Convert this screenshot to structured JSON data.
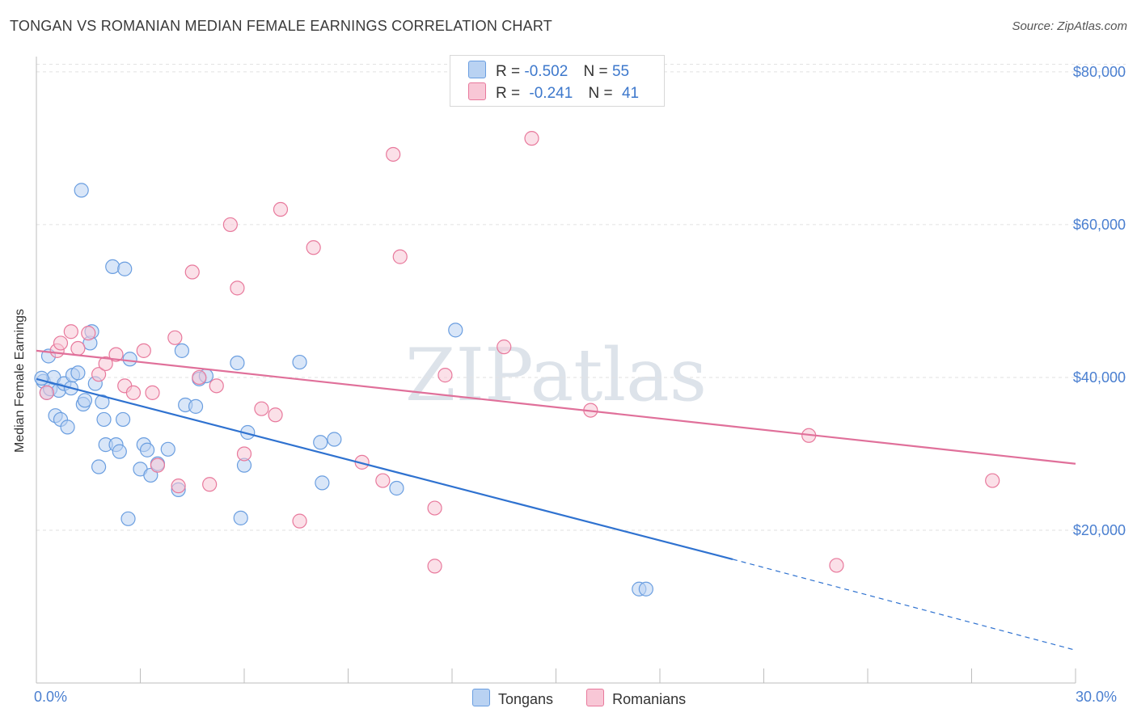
{
  "title": "TONGAN VS ROMANIAN MEDIAN FEMALE EARNINGS CORRELATION CHART",
  "source": "Source: ZipAtlas.com",
  "watermark": "ZIPatlas",
  "legend_stats": [
    {
      "r_label": "R =",
      "r_value": "-0.502",
      "n_label": "N =",
      "n_value": "55"
    },
    {
      "r_label": "R =",
      "r_value": "-0.241",
      "n_label": "N =",
      "n_value": "41"
    }
  ],
  "legend_series": [
    "Tongans",
    "Romanians"
  ],
  "x_tick_labels": {
    "min": "0.0%",
    "max": "30.0%"
  },
  "chart_data": {
    "type": "scatter",
    "ylabel": "Median Female Earnings",
    "xlabel": "",
    "xlim": [
      0,
      30
    ],
    "ylim": [
      0,
      82000
    ],
    "y_ticks": [
      20000,
      40000,
      60000,
      80000
    ],
    "y_tick_labels": [
      "$20,000",
      "$40,000",
      "$60,000",
      "$80,000"
    ],
    "grid": true,
    "legend_position": "top-center",
    "series": [
      {
        "name": "Tongans",
        "color": "#6a9ee0",
        "fill": "#b9d2f2",
        "points": [
          [
            0.2,
            39.5
          ],
          [
            0.3,
            38
          ],
          [
            0.35,
            42.8
          ],
          [
            0.4,
            38.5
          ],
          [
            0.5,
            40
          ],
          [
            0.55,
            35
          ],
          [
            0.65,
            38.3
          ],
          [
            0.7,
            34.5
          ],
          [
            0.8,
            39.2
          ],
          [
            0.9,
            33.5
          ],
          [
            1.0,
            38.6
          ],
          [
            1.05,
            40.3
          ],
          [
            1.2,
            40.6
          ],
          [
            1.35,
            36.5
          ],
          [
            1.4,
            37
          ],
          [
            1.55,
            44.5
          ],
          [
            1.6,
            46
          ],
          [
            1.7,
            39.2
          ],
          [
            1.8,
            28.3
          ],
          [
            1.9,
            36.8
          ],
          [
            1.95,
            34.5
          ],
          [
            2.0,
            31.2
          ],
          [
            2.2,
            54.5
          ],
          [
            2.3,
            31.2
          ],
          [
            2.4,
            30.3
          ],
          [
            2.5,
            34.5
          ],
          [
            2.55,
            54.2
          ],
          [
            2.65,
            21.5
          ],
          [
            2.7,
            42.4
          ],
          [
            3.0,
            28
          ],
          [
            3.1,
            31.2
          ],
          [
            3.2,
            30.5
          ],
          [
            3.3,
            27.2
          ],
          [
            3.5,
            28.7
          ],
          [
            3.8,
            30.6
          ],
          [
            4.1,
            25.3
          ],
          [
            4.2,
            43.5
          ],
          [
            4.3,
            36.4
          ],
          [
            4.6,
            36.2
          ],
          [
            4.7,
            39.8
          ],
          [
            4.9,
            40.2
          ],
          [
            5.8,
            41.9
          ],
          [
            5.9,
            21.6
          ],
          [
            6.0,
            28.5
          ],
          [
            6.1,
            32.8
          ],
          [
            7.6,
            42
          ],
          [
            8.2,
            31.5
          ],
          [
            8.25,
            26.2
          ],
          [
            8.6,
            31.9
          ],
          [
            10.4,
            25.5
          ],
          [
            12.1,
            46.2
          ],
          [
            17.4,
            12.3
          ],
          [
            17.6,
            12.3
          ],
          [
            1.3,
            64.5
          ],
          [
            0.15,
            39.9
          ]
        ],
        "trend": {
          "x0": 0,
          "y0": 39.8,
          "x1": 20.1,
          "y1": 16.2,
          "dashed_to_x": 30,
          "dashed_to_y": 4.3
        }
      },
      {
        "name": "Romanians",
        "color": "#e8799c",
        "fill": "#f8c7d6",
        "points": [
          [
            0.3,
            38
          ],
          [
            0.6,
            43.5
          ],
          [
            0.7,
            44.5
          ],
          [
            1.0,
            46
          ],
          [
            1.2,
            43.8
          ],
          [
            1.5,
            45.8
          ],
          [
            1.8,
            40.4
          ],
          [
            2.0,
            41.8
          ],
          [
            2.3,
            43
          ],
          [
            2.55,
            38.9
          ],
          [
            2.8,
            38
          ],
          [
            3.1,
            43.5
          ],
          [
            3.35,
            38
          ],
          [
            3.5,
            28.5
          ],
          [
            4.0,
            45.2
          ],
          [
            4.1,
            25.8
          ],
          [
            4.5,
            53.8
          ],
          [
            4.7,
            40
          ],
          [
            5.0,
            26
          ],
          [
            5.2,
            38.9
          ],
          [
            5.6,
            60
          ],
          [
            5.8,
            51.7
          ],
          [
            6.0,
            30
          ],
          [
            6.5,
            35.9
          ],
          [
            6.9,
            35.1
          ],
          [
            7.05,
            62
          ],
          [
            7.6,
            21.2
          ],
          [
            8.0,
            57
          ],
          [
            9.4,
            28.9
          ],
          [
            10.0,
            26.5
          ],
          [
            10.3,
            69.2
          ],
          [
            10.5,
            55.8
          ],
          [
            11.5,
            22.9
          ],
          [
            11.5,
            15.3
          ],
          [
            11.8,
            40.3
          ],
          [
            13.5,
            44
          ],
          [
            14.3,
            71.3
          ],
          [
            16.0,
            35.7
          ],
          [
            22.3,
            32.4
          ],
          [
            23.1,
            15.4
          ],
          [
            27.6,
            26.5
          ]
        ],
        "trend": {
          "x0": 0,
          "y0": 43.5,
          "x1": 30,
          "y1": 28.7
        }
      }
    ]
  }
}
